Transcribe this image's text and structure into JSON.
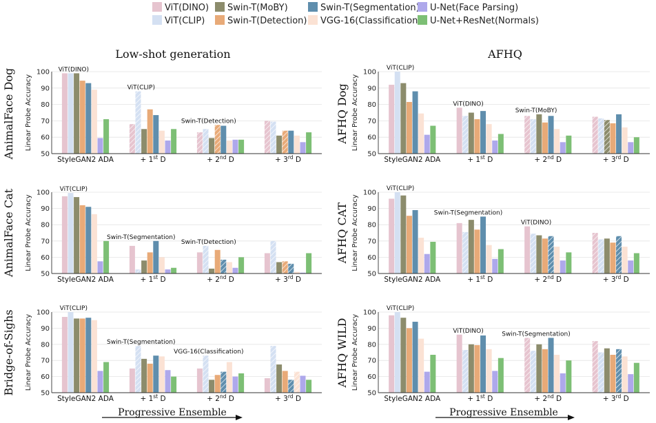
{
  "colors": {
    "ViT(DINO)": "#e6c4cf",
    "ViT(CLIP)": "#d4e0f2",
    "Swin-T(MoBY)": "#8c8c6c",
    "Swin-T(Detection)": "#e8aa78",
    "Swin-T(Segmentation)": "#5f8ead",
    "VGG-16(Classification)": "#fbe2d4",
    "U-Net(Face Parsing)": "#aea8eb",
    "U-Net+ResNet(Normals)": "#7dbf75"
  },
  "legend": [
    "ViT(DINO)",
    "Swin-T(MoBY)",
    "Swin-T(Segmentation)",
    "U-Net(Face Parsing)",
    "ViT(CLIP)",
    "Swin-T(Detection)",
    "VGG-16(Classification)",
    "U-Net+ResNet(Normals)"
  ],
  "column_titles": [
    "Low-shot generation",
    "AFHQ"
  ],
  "progressive_label": "Progressive Ensemble",
  "chart_data": [
    {
      "type": "bar",
      "panel": "AnimalFace Dog",
      "ylabel": "Linear Probe Accuracy",
      "ylim": [
        50,
        100
      ],
      "yticks": [
        50,
        60,
        70,
        80,
        90,
        100
      ],
      "categories": [
        "StyleGAN2 ADA",
        "+ 1st D",
        "+ 2nd D",
        "+ 3rd D"
      ],
      "series": [
        {
          "name": "ViT(DINO)",
          "values": [
            99,
            68,
            63,
            70
          ]
        },
        {
          "name": "ViT(CLIP)",
          "values": [
            99,
            88,
            65,
            69.5
          ]
        },
        {
          "name": "Swin-T(MoBY)",
          "values": [
            99,
            65,
            59.5,
            61
          ]
        },
        {
          "name": "Swin-T(Detection)",
          "values": [
            94.5,
            77,
            67.5,
            64
          ]
        },
        {
          "name": "Swin-T(Segmentation)",
          "values": [
            93,
            73.5,
            67,
            64
          ]
        },
        {
          "name": "VGG-16(Classification)",
          "values": [
            89,
            64,
            58,
            61
          ]
        },
        {
          "name": "U-Net(Face Parsing)",
          "values": [
            59.5,
            58,
            58.5,
            57
          ]
        },
        {
          "name": "U-Net+ResNet(Normals)",
          "values": [
            71,
            65,
            58.5,
            63
          ]
        }
      ],
      "hatched": [
        [],
        [
          "ViT(DINO)",
          "ViT(CLIP)"
        ],
        [
          "ViT(DINO)",
          "ViT(CLIP)",
          "Swin-T(Detection)"
        ],
        [
          "ViT(DINO)",
          "ViT(CLIP)",
          "Swin-T(Detection)"
        ]
      ],
      "annotations": [
        {
          "group": 0,
          "text": "ViT(DINO)"
        },
        {
          "group": 1,
          "text": "ViT(CLIP)"
        },
        {
          "group": 2,
          "text": "Swin-T(Detection)"
        }
      ]
    },
    {
      "type": "bar",
      "panel": "AFHQ Dog",
      "ylabel": "Linear Probe Accuracy",
      "ylim": [
        50,
        100
      ],
      "yticks": [
        50,
        60,
        70,
        80,
        90,
        100
      ],
      "categories": [
        "StyleGAN2 ADA",
        "+ 1st D",
        "+ 2nd D",
        "+ 3rd D"
      ],
      "series": [
        {
          "name": "ViT(DINO)",
          "values": [
            92,
            78,
            73,
            72.5
          ]
        },
        {
          "name": "ViT(CLIP)",
          "values": [
            100,
            73,
            71,
            71.5
          ]
        },
        {
          "name": "Swin-T(MoBY)",
          "values": [
            93,
            75,
            74,
            70.5
          ]
        },
        {
          "name": "Swin-T(Detection)",
          "values": [
            81.5,
            71,
            69,
            68.5
          ]
        },
        {
          "name": "Swin-T(Segmentation)",
          "values": [
            88,
            76,
            73,
            74
          ]
        },
        {
          "name": "VGG-16(Classification)",
          "values": [
            74.5,
            68,
            65,
            66
          ]
        },
        {
          "name": "U-Net(Face Parsing)",
          "values": [
            61.5,
            58,
            57,
            57
          ]
        },
        {
          "name": "U-Net+ResNet(Normals)",
          "values": [
            67,
            62,
            61,
            60
          ]
        }
      ],
      "hatched": [
        [],
        [
          "ViT(CLIP)"
        ],
        [
          "ViT(CLIP)",
          "ViT(DINO)"
        ],
        [
          "ViT(CLIP)",
          "ViT(DINO)",
          "Swin-T(MoBY)"
        ]
      ],
      "annotations": [
        {
          "group": 0,
          "text": "ViT(CLIP)"
        },
        {
          "group": 1,
          "text": "ViT(DINO)"
        },
        {
          "group": 2,
          "text": "Swin-T(MoBY)"
        }
      ]
    },
    {
      "type": "bar",
      "panel": "AnimalFace Cat",
      "ylabel": "Linear Probe Accuracy",
      "ylim": [
        50,
        100
      ],
      "yticks": [
        50,
        60,
        70,
        80,
        90,
        100
      ],
      "categories": [
        "StyleGAN2 ADA",
        "+ 1st D",
        "+ 2nd D",
        "+ 3rd D"
      ],
      "series": [
        {
          "name": "ViT(DINO)",
          "values": [
            97.5,
            67,
            63,
            62.5
          ]
        },
        {
          "name": "ViT(CLIP)",
          "values": [
            99.5,
            52.5,
            67,
            70
          ]
        },
        {
          "name": "Swin-T(MoBY)",
          "values": [
            97,
            58,
            53,
            57
          ]
        },
        {
          "name": "Swin-T(Detection)",
          "values": [
            92,
            63,
            64.5,
            57.5
          ]
        },
        {
          "name": "Swin-T(Segmentation)",
          "values": [
            91,
            70,
            58.5,
            56
          ]
        },
        {
          "name": "VGG-16(Classification)",
          "values": [
            86.5,
            60,
            57,
            51
          ]
        },
        {
          "name": "U-Net(Face Parsing)",
          "values": [
            57.5,
            52.5,
            53.5,
            50.5
          ]
        },
        {
          "name": "U-Net+ResNet(Normals)",
          "values": [
            70,
            53.5,
            60,
            62.5
          ]
        }
      ],
      "hatched": [
        [],
        [
          "ViT(CLIP)"
        ],
        [
          "ViT(CLIP)",
          "Swin-T(Segmentation)"
        ],
        [
          "ViT(CLIP)",
          "Swin-T(Segmentation)",
          "Swin-T(Detection)"
        ]
      ],
      "annotations": [
        {
          "group": 0,
          "text": "ViT(CLIP)"
        },
        {
          "group": 1,
          "text": "Swin-T(Segmentation)"
        },
        {
          "group": 2,
          "text": "Swin-T(Detection)"
        }
      ]
    },
    {
      "type": "bar",
      "panel": "AFHQ CAT",
      "ylabel": "Linear Probe Accuracy",
      "ylim": [
        50,
        100
      ],
      "yticks": [
        50,
        60,
        70,
        80,
        90,
        100
      ],
      "categories": [
        "StyleGAN2 ADA",
        "+ 1st D",
        "+ 2nd D",
        "+ 3rd D"
      ],
      "series": [
        {
          "name": "ViT(DINO)",
          "values": [
            96,
            81,
            79,
            75
          ]
        },
        {
          "name": "ViT(CLIP)",
          "values": [
            100,
            75.5,
            74.5,
            71
          ]
        },
        {
          "name": "Swin-T(MoBY)",
          "values": [
            98,
            83,
            73.5,
            71.5
          ]
        },
        {
          "name": "Swin-T(Detection)",
          "values": [
            85.5,
            77,
            71.5,
            69
          ]
        },
        {
          "name": "Swin-T(Segmentation)",
          "values": [
            89,
            85,
            73,
            73
          ]
        },
        {
          "name": "VGG-16(Classification)",
          "values": [
            72,
            67.5,
            66.5,
            66.5
          ]
        },
        {
          "name": "U-Net(Face Parsing)",
          "values": [
            62,
            59,
            58,
            58
          ]
        },
        {
          "name": "U-Net+ResNet(Normals)",
          "values": [
            69.5,
            65,
            63,
            62.5
          ]
        }
      ],
      "hatched": [
        [],
        [
          "ViT(CLIP)"
        ],
        [
          "ViT(CLIP)",
          "Swin-T(Segmentation)"
        ],
        [
          "ViT(CLIP)",
          "Swin-T(Segmentation)",
          "ViT(DINO)"
        ]
      ],
      "annotations": [
        {
          "group": 0,
          "text": "ViT(CLIP)"
        },
        {
          "group": 1,
          "text": "Swin-T(Segmentation)"
        },
        {
          "group": 2,
          "text": "ViT(DINO)"
        }
      ]
    },
    {
      "type": "bar",
      "panel": "Bridge-of-Sighs",
      "ylabel": "Linear Probe Accuracy",
      "ylim": [
        50,
        100
      ],
      "yticks": [
        50,
        60,
        70,
        80,
        90,
        100
      ],
      "categories": [
        "StyleGAN2 ADA",
        "+ 1st D",
        "+ 2nd D",
        "+ 3rd D"
      ],
      "series": [
        {
          "name": "ViT(DINO)",
          "values": [
            97,
            65,
            65,
            59
          ]
        },
        {
          "name": "ViT(CLIP)",
          "values": [
            100,
            79,
            73,
            79
          ]
        },
        {
          "name": "Swin-T(MoBY)",
          "values": [
            96,
            71,
            58,
            67.5
          ]
        },
        {
          "name": "Swin-T(Detection)",
          "values": [
            96,
            68,
            61,
            63.5
          ]
        },
        {
          "name": "Swin-T(Segmentation)",
          "values": [
            96.5,
            73,
            63,
            58
          ]
        },
        {
          "name": "VGG-16(Classification)",
          "values": [
            95,
            72.5,
            69,
            63
          ]
        },
        {
          "name": "U-Net(Face Parsing)",
          "values": [
            63.5,
            64,
            60,
            60.5
          ]
        },
        {
          "name": "U-Net+ResNet(Normals)",
          "values": [
            69,
            60,
            62,
            58
          ]
        }
      ],
      "hatched": [
        [],
        [
          "ViT(CLIP)"
        ],
        [
          "ViT(CLIP)",
          "Swin-T(Segmentation)"
        ],
        [
          "ViT(CLIP)",
          "Swin-T(Segmentation)",
          "VGG-16(Classification)"
        ]
      ],
      "annotations": [
        {
          "group": 0,
          "text": "ViT(CLIP)"
        },
        {
          "group": 1,
          "text": "Swin-T(Segmentation)"
        },
        {
          "group": 2,
          "text": "VGG-16(Classification)"
        }
      ]
    },
    {
      "type": "bar",
      "panel": "AFHQ WILD",
      "ylabel": "Linear Probe Accuracy",
      "ylim": [
        50,
        100
      ],
      "yticks": [
        50,
        60,
        70,
        80,
        90,
        100
      ],
      "categories": [
        "StyleGAN2 ADA",
        "+ 1st D",
        "+ 2nd D",
        "+ 3rd D"
      ],
      "series": [
        {
          "name": "ViT(DINO)",
          "values": [
            98,
            86,
            84,
            82
          ]
        },
        {
          "name": "ViT(CLIP)",
          "values": [
            100,
            76.5,
            76,
            75
          ]
        },
        {
          "name": "Swin-T(MoBY)",
          "values": [
            96.5,
            80,
            80,
            77.5
          ]
        },
        {
          "name": "Swin-T(Detection)",
          "values": [
            90,
            79.5,
            77,
            73.5
          ]
        },
        {
          "name": "Swin-T(Segmentation)",
          "values": [
            94,
            85.5,
            84,
            77
          ]
        },
        {
          "name": "VGG-16(Classification)",
          "values": [
            83.5,
            77,
            73.5,
            72.5
          ]
        },
        {
          "name": "U-Net(Face Parsing)",
          "values": [
            63,
            63.5,
            62,
            61.5
          ]
        },
        {
          "name": "U-Net+ResNet(Normals)",
          "values": [
            73.5,
            71.5,
            70,
            68.5
          ]
        }
      ],
      "hatched": [
        [],
        [
          "ViT(CLIP)"
        ],
        [
          "ViT(CLIP)",
          "ViT(DINO)"
        ],
        [
          "ViT(CLIP)",
          "ViT(DINO)",
          "Swin-T(Segmentation)"
        ]
      ],
      "annotations": [
        {
          "group": 0,
          "text": "ViT(CLIP)"
        },
        {
          "group": 1,
          "text": "ViT(DINO)"
        },
        {
          "group": 2,
          "text": "Swin-T(Segmentation)"
        }
      ]
    }
  ]
}
